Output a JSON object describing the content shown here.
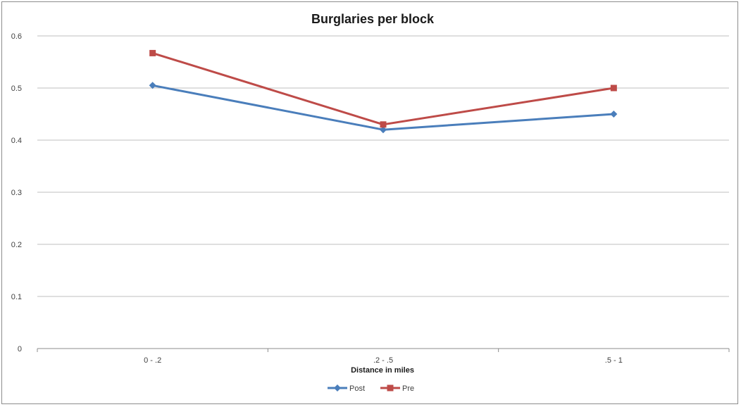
{
  "chart_data": {
    "type": "line",
    "title": "Burglaries per block",
    "xlabel": "Distance in miles",
    "ylabel": "",
    "categories": [
      "0 - .2",
      ".2 - .5",
      ".5 - 1"
    ],
    "ylim": [
      0,
      0.6
    ],
    "yticks": [
      "0",
      "0.1",
      "0.2",
      "0.3",
      "0.4",
      "0.5",
      "0.6"
    ],
    "grid": true,
    "legend_position": "bottom",
    "series": [
      {
        "name": "Post",
        "values": [
          0.505,
          0.42,
          0.45
        ],
        "color": "#4a7ebb",
        "marker": "diamond"
      },
      {
        "name": "Pre",
        "values": [
          0.567,
          0.43,
          0.5
        ],
        "color": "#be4b48",
        "marker": "square"
      }
    ]
  }
}
